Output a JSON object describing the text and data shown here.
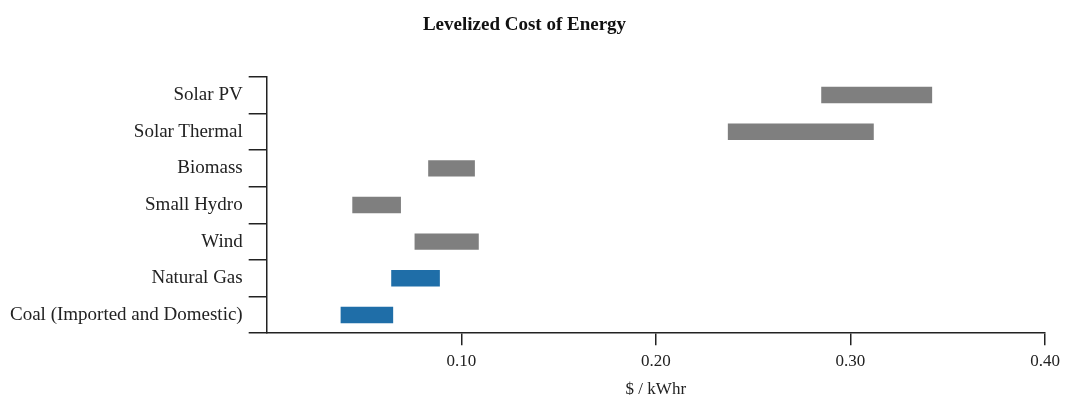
{
  "chart_data": {
    "type": "bar",
    "title": "Levelized Cost of Energy",
    "xlabel": "$ / kWhr",
    "orientation": "horizontal",
    "categories": [
      "Solar PV",
      "Solar Thermal",
      "Biomass",
      "Small Hydro",
      "Wind",
      "Natural Gas",
      "Coal (Imported and Domestic)"
    ],
    "base": [
      0.285,
      0.237,
      0.083,
      0.044,
      0.076,
      0.064,
      0.038
    ],
    "values": [
      0.057,
      0.075,
      0.024,
      0.025,
      0.033,
      0.025,
      0.027
    ],
    "colors": [
      "#7f7f7f",
      "#7f7f7f",
      "#7f7f7f",
      "#7f7f7f",
      "#7f7f7f",
      "#1f6ea8",
      "#1f6ea8"
    ],
    "xlim": [
      0,
      0.4
    ],
    "xticks": [
      {
        "value": 0.1,
        "label": "0.10"
      },
      {
        "value": 0.2,
        "label": "0.20"
      },
      {
        "value": 0.3,
        "label": "0.30"
      },
      {
        "value": 0.4,
        "label": "0.40"
      }
    ],
    "grid": false,
    "legend": false
  }
}
